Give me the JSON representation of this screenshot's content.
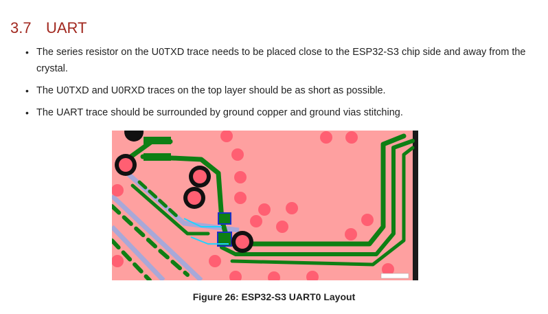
{
  "section": {
    "number": "3.7",
    "title": "UART"
  },
  "bullets": [
    "The series resistor on the U0TXD trace needs to be placed close to the ESP32-S3 chip side and away from the crystal.",
    "The U0TXD and U0RXD traces on the top layer should be as short as possible.",
    "The UART trace should be surrounded by ground copper and ground vias stitching."
  ],
  "figure": {
    "caption": "Figure 26: ESP32-S3 UART0 Layout",
    "colors": {
      "board": "#fea0a0",
      "trace": "#0e7f14",
      "pad_ring": "#111111",
      "via": "#ff5f72",
      "label": "#e5007f",
      "inner_layer_trace": "#a8a8d8",
      "highlight": "#1fd3ff",
      "pad_blue": "#1930c8"
    }
  }
}
